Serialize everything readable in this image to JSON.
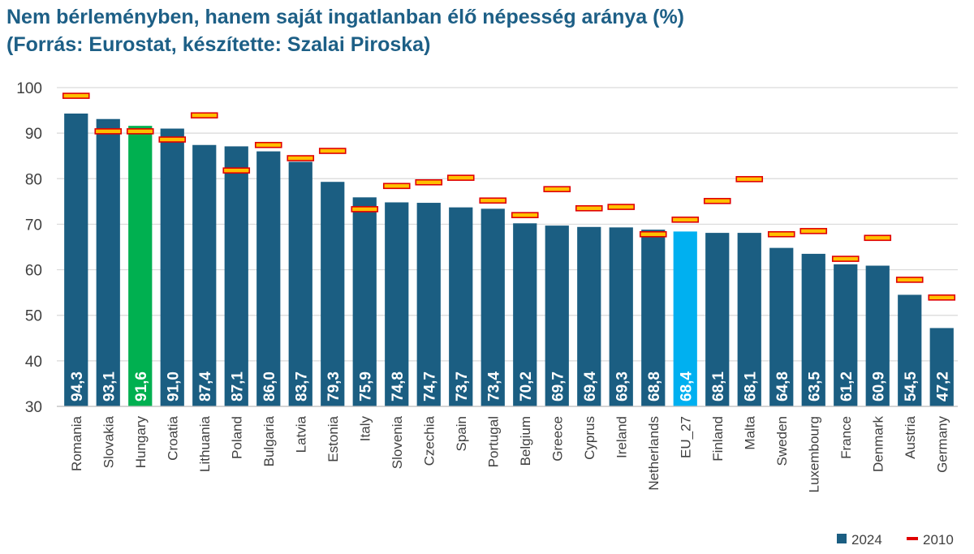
{
  "title_line1": "Nem bérleményben, hanem saját ingatlanban élő népesség aránya (%)",
  "title_line2": "(Forrás: Eurostat, készítette: Szalai Piroska)",
  "chart_data": {
    "type": "bar",
    "title": "Nem bérleményben, hanem saját ingatlanban élő népesség aránya (%) (Forrás: Eurostat, készítette: Szalai Piroska)",
    "categories": [
      "Romania",
      "Slovakia",
      "Hungary",
      "Croatia",
      "Lithuania",
      "Poland",
      "Bulgaria",
      "Latvia",
      "Estonia",
      "Italy",
      "Slovenia",
      "Czechia",
      "Spain",
      "Portugal",
      "Belgium",
      "Greece",
      "Cyprus",
      "Ireland",
      "Netherlands",
      "EU_27",
      "Finland",
      "Malta",
      "Sweden",
      "Luxembourg",
      "France",
      "Denmark",
      "Austria",
      "Germany"
    ],
    "series": [
      {
        "name": "2024",
        "kind": "bar",
        "values": [
          94.3,
          93.1,
          91.6,
          91.0,
          87.4,
          87.1,
          86.0,
          83.7,
          79.3,
          75.9,
          74.8,
          74.7,
          73.7,
          73.4,
          70.2,
          69.7,
          69.4,
          69.3,
          68.8,
          68.4,
          68.1,
          68.1,
          64.8,
          63.5,
          61.2,
          60.9,
          54.5,
          47.2
        ],
        "labels": [
          "94,3",
          "93,1",
          "91,6",
          "91,0",
          "87,4",
          "87,1",
          "86,0",
          "83,7",
          "79,3",
          "75,9",
          "74,8",
          "74,7",
          "73,7",
          "73,4",
          "70,2",
          "69,7",
          "69,4",
          "69,3",
          "68,8",
          "68,4",
          "68,1",
          "68,1",
          "64,8",
          "63,5",
          "61,2",
          "60,9",
          "54,5",
          "47,2"
        ]
      },
      {
        "name": "2010",
        "kind": "marker",
        "values": [
          98.2,
          90.4,
          90.4,
          88.6,
          93.9,
          81.8,
          87.4,
          84.5,
          86.1,
          73.3,
          78.4,
          79.2,
          80.2,
          75.2,
          72.0,
          77.7,
          73.5,
          73.8,
          67.8,
          71.0,
          75.1,
          79.9,
          67.8,
          68.5,
          62.4,
          67.0,
          57.8,
          53.9
        ]
      }
    ],
    "ylim": [
      30,
      100
    ],
    "yticks": [
      "30",
      "40",
      "50",
      "60",
      "70",
      "80",
      "90",
      "100"
    ],
    "grid": true,
    "legend": "bottom-right",
    "colors": {
      "bar": "#1b5e82",
      "hungary": "#00b050",
      "eu": "#00b0f0",
      "marker_fill": "#ffc000",
      "marker_edge": "#e00000"
    }
  }
}
